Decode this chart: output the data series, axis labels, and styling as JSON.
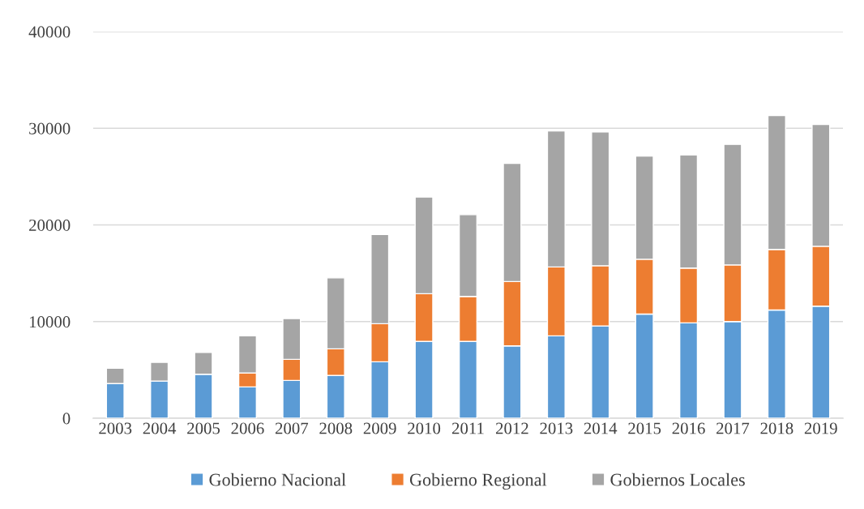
{
  "chart_data": {
    "type": "bar",
    "stacked": true,
    "categories": [
      "2003",
      "2004",
      "2005",
      "2006",
      "2007",
      "2008",
      "2009",
      "2010",
      "2011",
      "2012",
      "2013",
      "2014",
      "2015",
      "2016",
      "2017",
      "2018",
      "2019"
    ],
    "series": [
      {
        "name": "Gobierno Nacional",
        "color": "#5b9bd5",
        "values": [
          3580,
          3850,
          4550,
          3240,
          3910,
          4420,
          5840,
          7940,
          7940,
          7480,
          8520,
          9550,
          10780,
          9860,
          10000,
          11200,
          11590
        ]
      },
      {
        "name": "Gobierno Regional",
        "color": "#ed7d31",
        "values": [
          null,
          null,
          null,
          1450,
          2180,
          2760,
          3940,
          4940,
          4660,
          6660,
          7130,
          6230,
          5670,
          5670,
          5860,
          6260,
          6200
        ]
      },
      {
        "name": "Gobiernos Locales",
        "color": "#a5a5a5",
        "values": [
          1590,
          1930,
          2260,
          3830,
          4220,
          7340,
          9220,
          10000,
          8460,
          12230,
          14070,
          13830,
          10680,
          11710,
          12470,
          13860,
          12610
        ]
      }
    ],
    "ylim": [
      0,
      40000
    ],
    "yticks": [
      0,
      10000,
      20000,
      30000,
      40000
    ],
    "grid": "y",
    "legend": "bottom"
  }
}
